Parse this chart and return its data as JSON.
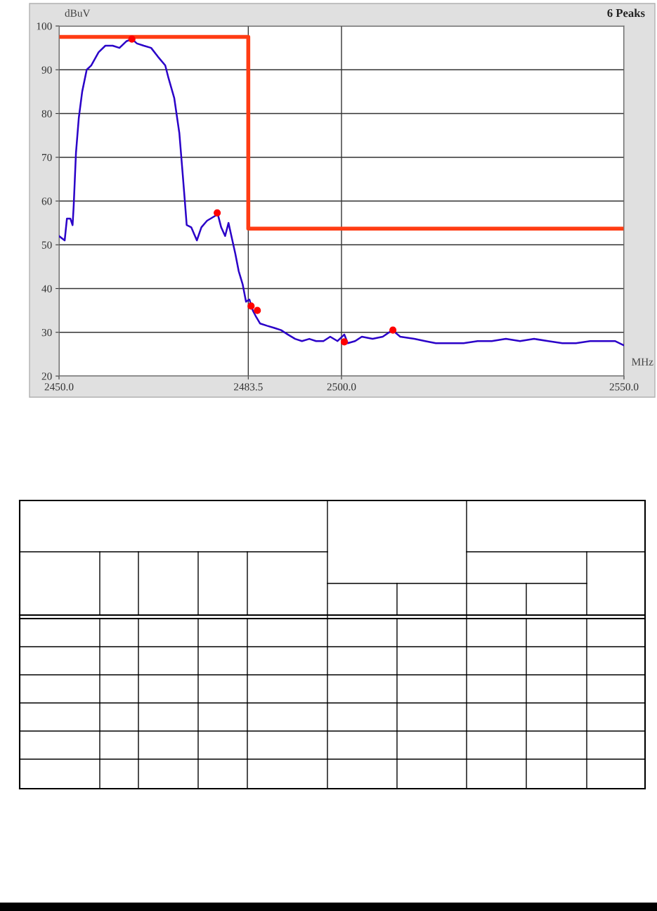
{
  "chart_data": {
    "type": "line",
    "ylabel": "dBuV",
    "xlabel": "MHz",
    "annotations": [
      "6 Peaks"
    ],
    "xlim": [
      2450.0,
      2550.0
    ],
    "ylim": [
      20,
      100
    ],
    "xticks": [
      {
        "value": 2450.0,
        "label": "2450.0"
      },
      {
        "value": 2483.5,
        "label": "2483.5"
      },
      {
        "value": 2500.0,
        "label": "2500.0"
      },
      {
        "value": 2550.0,
        "label": "2550.0"
      }
    ],
    "yticks": [
      20,
      30,
      40,
      50,
      60,
      70,
      80,
      90,
      100
    ],
    "grid": true,
    "legend": false,
    "marker": "none",
    "line_style": "solid",
    "series": [
      {
        "type": "step",
        "color": "#ff3c14",
        "x": [
          2450.0,
          2483.5,
          2550.0
        ],
        "values": [
          97.5,
          53.7,
          53.7
        ]
      },
      {
        "color": "#2a00c8",
        "x": [
          2450.0,
          2451.0,
          2451.4,
          2452.0,
          2452.4,
          2452.6,
          2453.0,
          2453.5,
          2454.1,
          2454.9,
          2455.7,
          2457.0,
          2458.2,
          2459.5,
          2460.7,
          2461.9,
          2462.9,
          2463.8,
          2465.0,
          2466.3,
          2467.5,
          2468.8,
          2469.4,
          2470.4,
          2471.3,
          2471.9,
          2472.3,
          2472.6,
          2473.4,
          2474.4,
          2475.2,
          2476.2,
          2477.5,
          2478.1,
          2478.7,
          2479.4,
          2480.0,
          2480.6,
          2481.2,
          2481.8,
          2482.5,
          2483.1,
          2483.7,
          2484.3,
          2484.9,
          2485.6,
          2486.8,
          2488.1,
          2489.3,
          2490.5,
          2491.8,
          2493.0,
          2494.3,
          2495.5,
          2496.8,
          2498.0,
          2499.3,
          2500.5,
          2501.1,
          2502.4,
          2503.6,
          2505.5,
          2507.3,
          2509.0,
          2510.4,
          2512.9,
          2514.8,
          2516.7,
          2519.2,
          2521.6,
          2524.1,
          2526.6,
          2529.1,
          2531.6,
          2534.1,
          2536.6,
          2539.1,
          2541.5,
          2544.0,
          2546.5,
          2548.4,
          2550.0
        ],
        "values": [
          52,
          51,
          56,
          56,
          54.5,
          59,
          71,
          79,
          85,
          90,
          91,
          94,
          95.5,
          95.5,
          95,
          96.5,
          97,
          96,
          95.5,
          95,
          93,
          91,
          88,
          83.5,
          75.5,
          66,
          59.5,
          54.5,
          54,
          51,
          54,
          55.5,
          56.5,
          57,
          54,
          52,
          55,
          51.5,
          48,
          44,
          41,
          37,
          37.5,
          35,
          33.5,
          32,
          31.5,
          31,
          30.5,
          29.5,
          28.5,
          28,
          28.5,
          28,
          28,
          29,
          28,
          29.5,
          27.5,
          28,
          29,
          28.5,
          29,
          30.5,
          29,
          28.5,
          28,
          27.5,
          27.5,
          27.5,
          28,
          28,
          28.5,
          28,
          28.5,
          28,
          27.5,
          27.5,
          28,
          28,
          28,
          27
        ]
      },
      {
        "type": "scatter",
        "color": "#ff0000",
        "marker": "circle",
        "x": [
          2462.9,
          2478.0,
          2484.0,
          2485.1,
          2500.5,
          2509.1
        ],
        "values": [
          97,
          57.3,
          36,
          35,
          27.8,
          30.5
        ]
      }
    ]
  }
}
